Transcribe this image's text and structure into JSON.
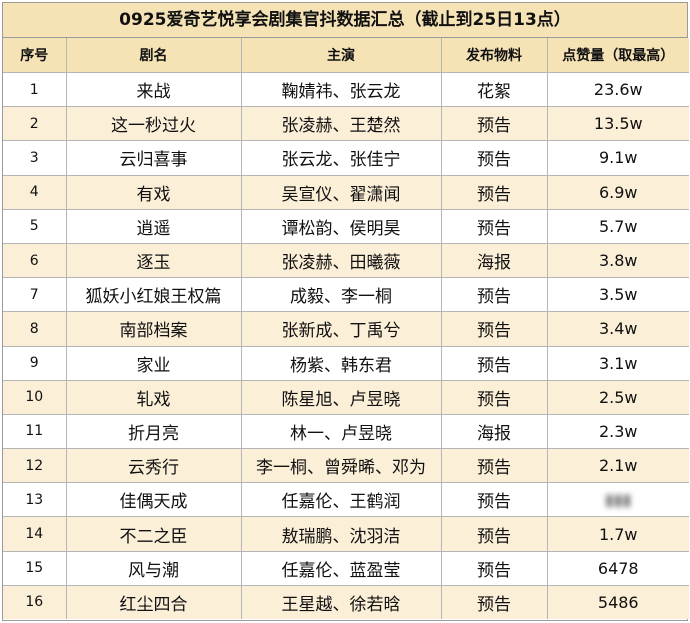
{
  "title": "0925爱奇艺悦享会剧集官抖数据汇总（截止到25日13点）",
  "headers": [
    "序号",
    "剧名",
    "主演",
    "发布物料",
    "点赞量（取最高）"
  ],
  "rows": [
    {
      "idx": "1",
      "drama": "来战",
      "cast": "鞠婧祎、张云龙",
      "material": "花絮",
      "views": "23.6w"
    },
    {
      "idx": "2",
      "drama": "这一秒过火",
      "cast": "张凌赫、王楚然",
      "material": "预告",
      "views": "13.5w"
    },
    {
      "idx": "3",
      "drama": "云归喜事",
      "cast": "张云龙、张佳宁",
      "material": "预告",
      "views": "9.1w"
    },
    {
      "idx": "4",
      "drama": "有戏",
      "cast": "吴宣仪、翟潇闻",
      "material": "预告",
      "views": "6.9w"
    },
    {
      "idx": "5",
      "drama": "逍遥",
      "cast": "谭松韵、侯明昊",
      "material": "预告",
      "views": "5.7w"
    },
    {
      "idx": "6",
      "drama": "逐玉",
      "cast": "张凌赫、田曦薇",
      "material": "海报",
      "views": "3.8w"
    },
    {
      "idx": "7",
      "drama": "狐妖小红娘王权篇",
      "cast": "成毅、李一桐",
      "material": "预告",
      "views": "3.5w"
    },
    {
      "idx": "8",
      "drama": "南部档案",
      "cast": "张新成、丁禹兮",
      "material": "预告",
      "views": "3.4w"
    },
    {
      "idx": "9",
      "drama": "家业",
      "cast": "杨紫、韩东君",
      "material": "预告",
      "views": "3.1w"
    },
    {
      "idx": "10",
      "drama": "轧戏",
      "cast": "陈星旭、卢昱晓",
      "material": "预告",
      "views": "2.5w"
    },
    {
      "idx": "11",
      "drama": "折月亮",
      "cast": "林一、卢昱晓",
      "material": "海报",
      "views": "2.3w"
    },
    {
      "idx": "12",
      "drama": "云秀行",
      "cast": "李一桐、曾舜晞、邓为",
      "material": "预告",
      "views": "2.1w"
    },
    {
      "idx": "13",
      "drama": "佳偶天成",
      "cast": "任嘉伦、王鹤润",
      "material": "预告",
      "views": "",
      "views_obscured": true
    },
    {
      "idx": "14",
      "drama": "不二之臣",
      "cast": "敖瑞鹏、沈羽洁",
      "material": "预告",
      "views": "1.7w"
    },
    {
      "idx": "15",
      "drama": "风与潮",
      "cast": "任嘉伦、蓝盈莹",
      "material": "预告",
      "views": "6478"
    },
    {
      "idx": "16",
      "drama": "红尘四合",
      "cast": "王星越、徐若晗",
      "material": "预告",
      "views": "5486"
    }
  ]
}
